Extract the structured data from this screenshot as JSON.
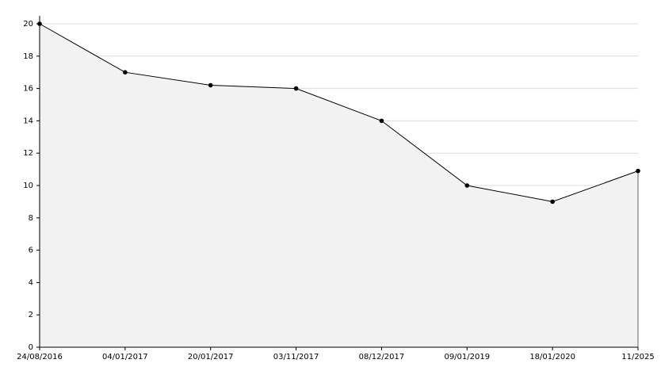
{
  "chart_data": {
    "type": "area",
    "categories": [
      "24/08/2016",
      "04/01/2017",
      "20/01/2017",
      "03/11/2017",
      "08/12/2017",
      "09/01/2019",
      "18/01/2020",
      "11/2025"
    ],
    "values": [
      20,
      17,
      16.2,
      16,
      14,
      10,
      9,
      10.9
    ],
    "color": "#000000",
    "fill": "#f2f2f2",
    "ylim": [
      0,
      20
    ],
    "yticks": [
      0,
      2,
      4,
      6,
      8,
      10,
      12,
      14,
      16,
      18,
      20
    ],
    "grid": true
  }
}
